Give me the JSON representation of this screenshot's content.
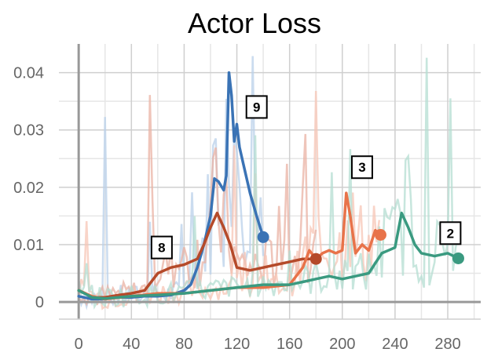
{
  "chart_data": {
    "type": "line",
    "title": "Actor Loss",
    "xlabel": "",
    "ylabel": "",
    "xlim": [
      -15,
      305
    ],
    "ylim": [
      -0.003,
      0.045
    ],
    "x_ticks": [
      0,
      40,
      80,
      120,
      160,
      200,
      240,
      280
    ],
    "x_tick_labels": [
      "0",
      "40",
      "80",
      "120",
      "160",
      "200",
      "240",
      "280"
    ],
    "y_ticks": [
      0,
      0.01,
      0.02,
      0.03,
      0.04
    ],
    "y_tick_labels": [
      "0",
      "0.01",
      "0.02",
      "0.03",
      "0.04"
    ],
    "grid": true,
    "series": [
      {
        "name": "9",
        "color": "#3a73b5",
        "raw_color": "#b9d0ea",
        "x": [
          0,
          10,
          20,
          30,
          40,
          50,
          60,
          70,
          80,
          85,
          90,
          95,
          100,
          103,
          106,
          110,
          112,
          114,
          116,
          118,
          120,
          122,
          125,
          130,
          135,
          140
        ],
        "y": [
          0.001,
          0.0005,
          0.0005,
          0.0008,
          0.0008,
          0.001,
          0.001,
          0.0012,
          0.002,
          0.003,
          0.006,
          0.01,
          0.015,
          0.0215,
          0.021,
          0.0195,
          0.022,
          0.04,
          0.036,
          0.028,
          0.031,
          0.027,
          0.024,
          0.019,
          0.015,
          0.0113
        ],
        "end_marker": true
      },
      {
        "name": "8",
        "color": "#b54a2a",
        "raw_color": "#eab2a3",
        "x": [
          0,
          5,
          10,
          20,
          30,
          40,
          50,
          60,
          70,
          80,
          90,
          95,
          100,
          105,
          110,
          115,
          120,
          130,
          140,
          150,
          160,
          170,
          175,
          180
        ],
        "y": [
          0.002,
          0.0015,
          0.0008,
          0.0008,
          0.0012,
          0.0015,
          0.002,
          0.005,
          0.006,
          0.0065,
          0.0075,
          0.01,
          0.013,
          0.0155,
          0.013,
          0.01,
          0.006,
          0.0055,
          0.006,
          0.0065,
          0.007,
          0.0075,
          0.0075,
          0.0075
        ],
        "end_marker": true
      },
      {
        "name": "3",
        "color": "#e8734a",
        "raw_color": "#f7c6b6",
        "x": [
          0,
          10,
          20,
          40,
          60,
          80,
          100,
          120,
          140,
          160,
          170,
          175,
          180,
          185,
          190,
          195,
          200,
          203,
          206,
          210,
          215,
          220,
          225,
          229
        ],
        "y": [
          0.002,
          0.001,
          0.0005,
          0.001,
          0.0015,
          0.0015,
          0.002,
          0.0025,
          0.0025,
          0.003,
          0.006,
          0.009,
          0.0075,
          0.0085,
          0.009,
          0.0085,
          0.009,
          0.019,
          0.015,
          0.0085,
          0.01,
          0.009,
          0.0125,
          0.0117
        ],
        "end_marker": true
      },
      {
        "name": "2",
        "color": "#3a9a80",
        "raw_color": "#b4ddd1",
        "x": [
          0,
          10,
          20,
          40,
          60,
          80,
          100,
          120,
          140,
          160,
          170,
          180,
          190,
          200,
          210,
          220,
          230,
          235,
          240,
          245,
          250,
          255,
          260,
          270,
          280,
          288
        ],
        "y": [
          0.002,
          0.0008,
          0.0006,
          0.001,
          0.0012,
          0.0015,
          0.002,
          0.0025,
          0.003,
          0.003,
          0.0035,
          0.004,
          0.0045,
          0.004,
          0.0045,
          0.005,
          0.0085,
          0.009,
          0.0095,
          0.0155,
          0.013,
          0.01,
          0.0085,
          0.008,
          0.0085,
          0.0076
        ],
        "end_marker": true
      }
    ],
    "annotations": [
      {
        "text": "9",
        "x": 135,
        "y": 0.034
      },
      {
        "text": "8",
        "x": 63,
        "y": 0.0095
      },
      {
        "text": "3",
        "x": 215,
        "y": 0.0235
      },
      {
        "text": "2",
        "x": 282,
        "y": 0.012
      }
    ]
  }
}
